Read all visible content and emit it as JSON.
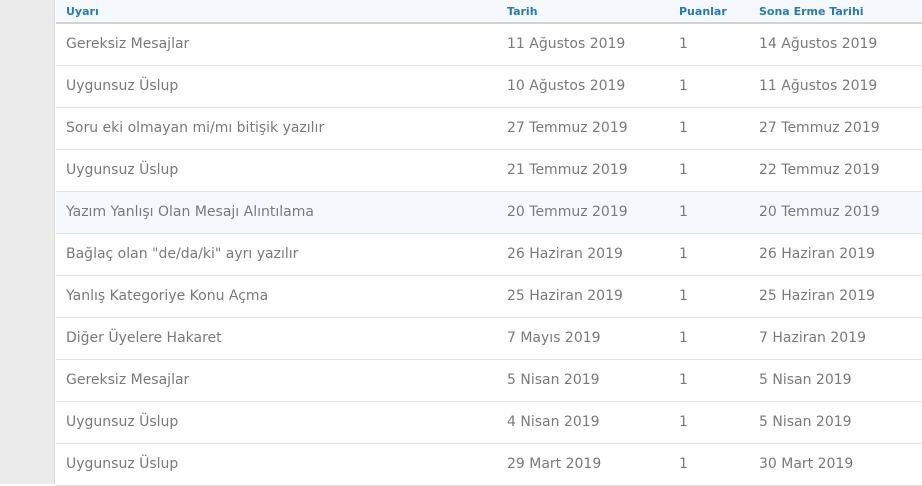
{
  "columns": {
    "warning": "Uyarı",
    "date": "Tarih",
    "points": "Puanlar",
    "expiry": "Sona Erme Tarihi"
  },
  "rows": [
    {
      "warning": "Gereksiz Mesajlar",
      "date": "11 Ağustos 2019",
      "points": "1",
      "expiry": "14 Ağustos 2019"
    },
    {
      "warning": "Uygunsuz Üslup",
      "date": "10 Ağustos 2019",
      "points": "1",
      "expiry": "11 Ağustos 2019"
    },
    {
      "warning": "Soru eki olmayan mi/mı bitişik yazılır",
      "date": "27 Temmuz 2019",
      "points": "1",
      "expiry": "27 Temmuz 2019"
    },
    {
      "warning": "Uygunsuz Üslup",
      "date": "21 Temmuz 2019",
      "points": "1",
      "expiry": "22 Temmuz 2019"
    },
    {
      "warning": "Yazım Yanlışı Olan Mesajı Alıntılama",
      "date": "20 Temmuz 2019",
      "points": "1",
      "expiry": "20 Temmuz 2019"
    },
    {
      "warning": "Bağlaç olan \"de/da/ki\" ayrı yazılır",
      "date": "26 Haziran 2019",
      "points": "1",
      "expiry": "26 Haziran 2019"
    },
    {
      "warning": "Yanlış Kategoriye Konu Açma",
      "date": "25 Haziran 2019",
      "points": "1",
      "expiry": "25 Haziran 2019"
    },
    {
      "warning": "Diğer Üyelere Hakaret",
      "date": "7 Mayıs 2019",
      "points": "1",
      "expiry": "7 Haziran 2019"
    },
    {
      "warning": "Gereksiz Mesajlar",
      "date": "5 Nisan 2019",
      "points": "1",
      "expiry": "5 Nisan 2019"
    },
    {
      "warning": "Uygunsuz Üslup",
      "date": "4 Nisan 2019",
      "points": "1",
      "expiry": "5 Nisan 2019"
    },
    {
      "warning": "Uygunsuz Üslup",
      "date": "29 Mart 2019",
      "points": "1",
      "expiry": "30 Mart 2019"
    }
  ]
}
